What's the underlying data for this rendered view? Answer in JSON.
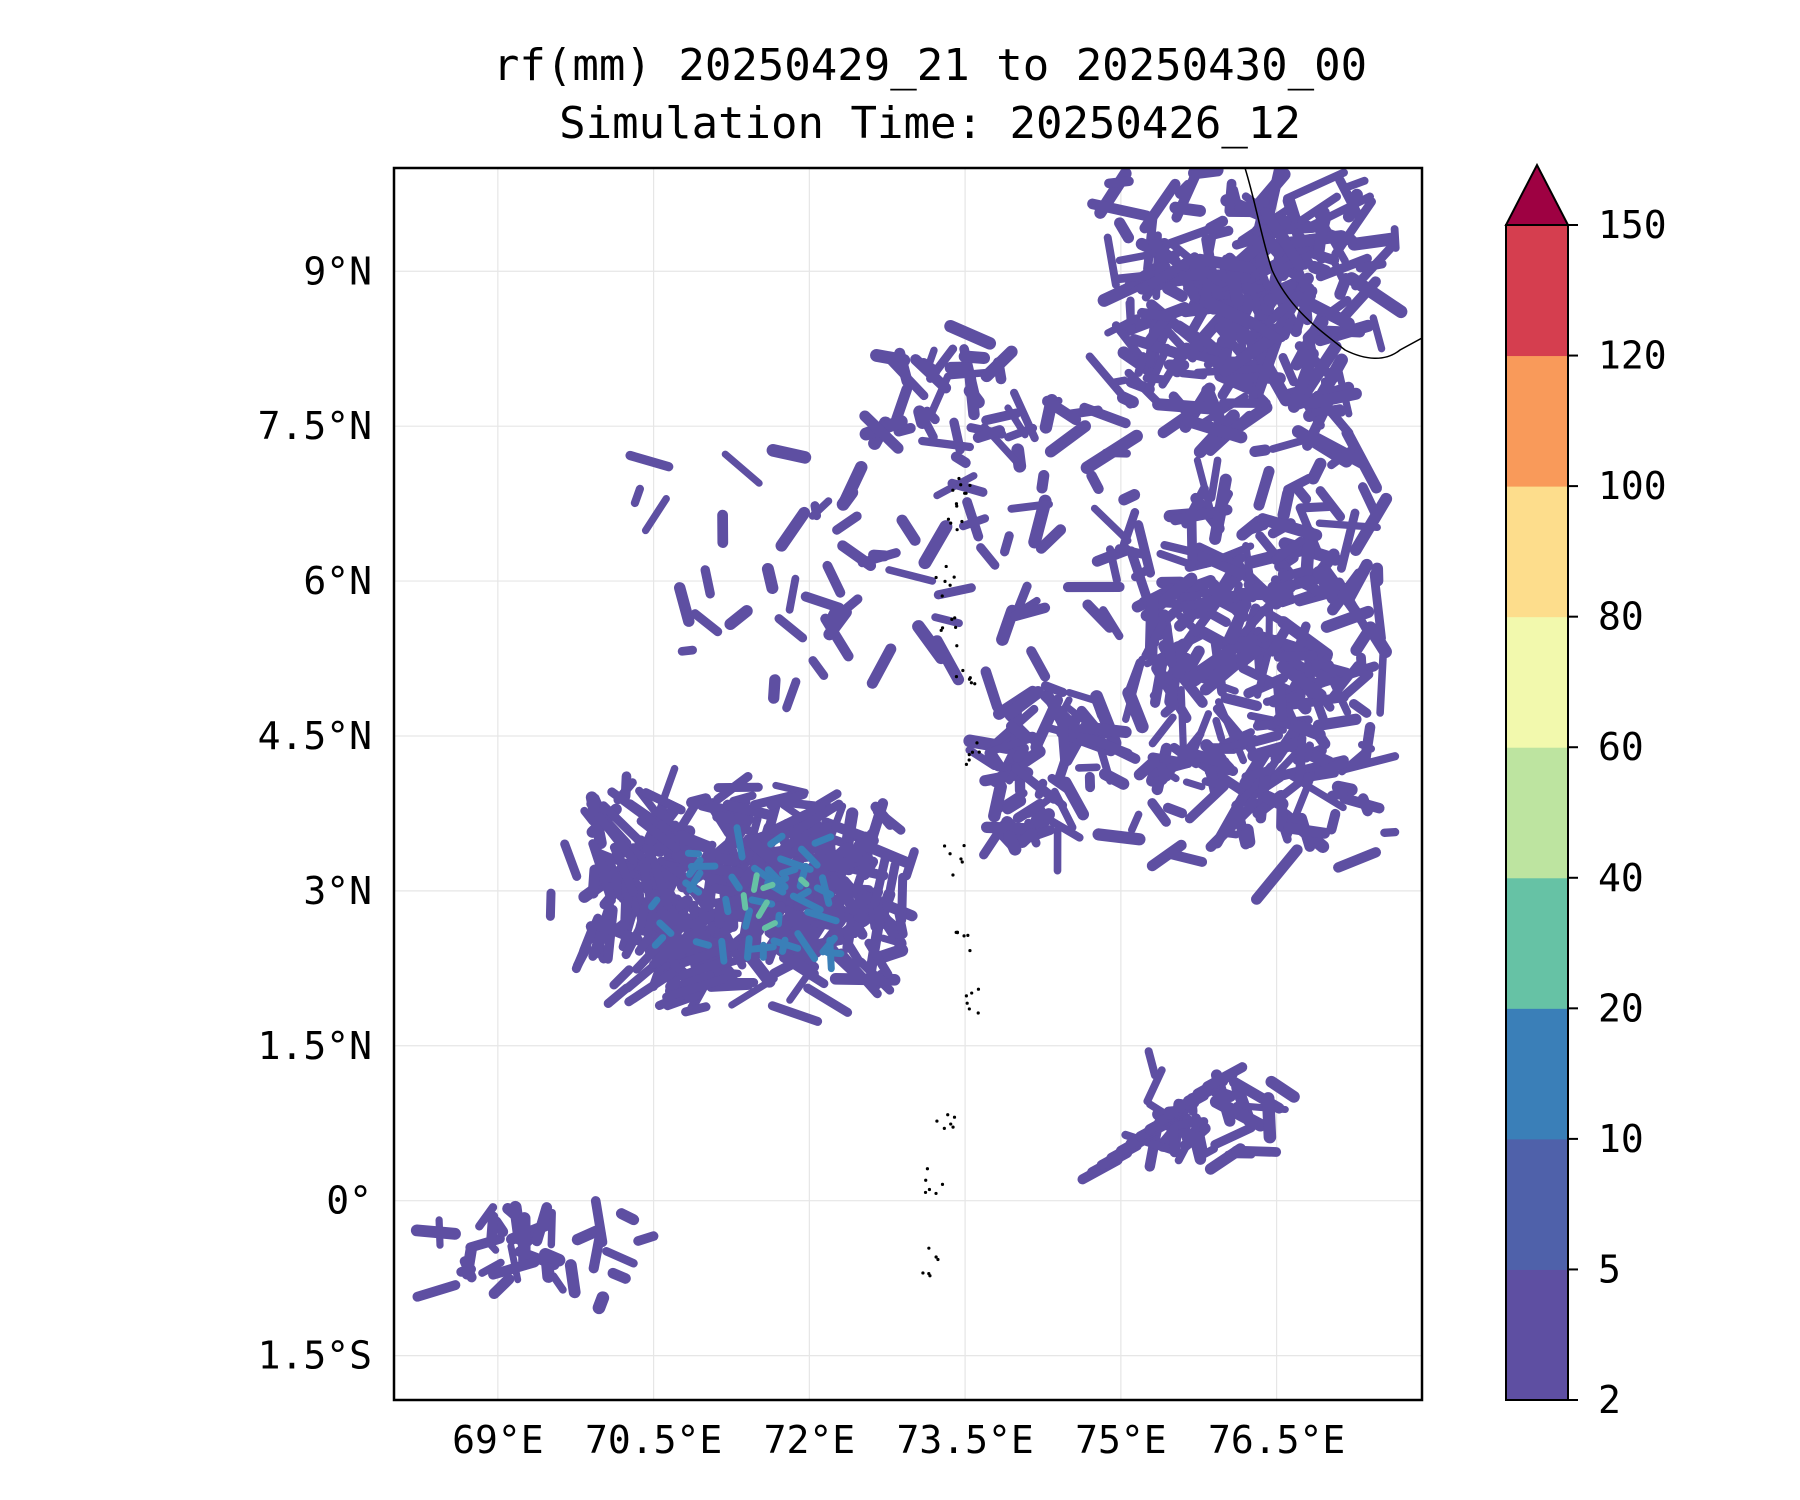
{
  "title": "rf(mm) 20250429_21 to 20250430_00",
  "subtitle": "Simulation Time: 20250426_12",
  "map": {
    "lon_range": [
      68.0,
      77.9
    ],
    "lat_range": [
      -1.93,
      10.0
    ],
    "gridlines": true,
    "xticks": [
      {
        "value": 69.0,
        "label": "69°E"
      },
      {
        "value": 70.5,
        "label": "70.5°E"
      },
      {
        "value": 72.0,
        "label": "72°E"
      },
      {
        "value": 73.5,
        "label": "73.5°E"
      },
      {
        "value": 75.0,
        "label": "75°E"
      },
      {
        "value": 76.5,
        "label": "76.5°E"
      }
    ],
    "yticks": [
      {
        "value": 9.0,
        "label": "9°N"
      },
      {
        "value": 7.5,
        "label": "7.5°N"
      },
      {
        "value": 6.0,
        "label": "6°N"
      },
      {
        "value": 4.5,
        "label": "4.5°N"
      },
      {
        "value": 3.0,
        "label": "3°N"
      },
      {
        "value": 1.5,
        "label": "1.5°N"
      },
      {
        "value": 0.0,
        "label": "0°"
      },
      {
        "value": -1.5,
        "label": "1.5°S"
      }
    ]
  },
  "colorbar": {
    "levels": [
      2,
      5,
      10,
      20,
      40,
      60,
      80,
      100,
      120,
      150
    ],
    "labels": [
      "2",
      "5",
      "10",
      "20",
      "40",
      "60",
      "80",
      "100",
      "120",
      "150"
    ],
    "colors": [
      "#5e4fa2",
      "#4f61aa",
      "#3a7fb8",
      "#66c2a5",
      "#bde4a0",
      "#f2f9ad",
      "#fddd8c",
      "#f99a5a",
      "#d53e4f"
    ],
    "extend_color": "#9e0142",
    "extend": "max"
  },
  "rain_color_light": "#5e4fa2",
  "rain_color_mid": "#3a7fb8",
  "rain_color_high": "#66c2a5"
}
